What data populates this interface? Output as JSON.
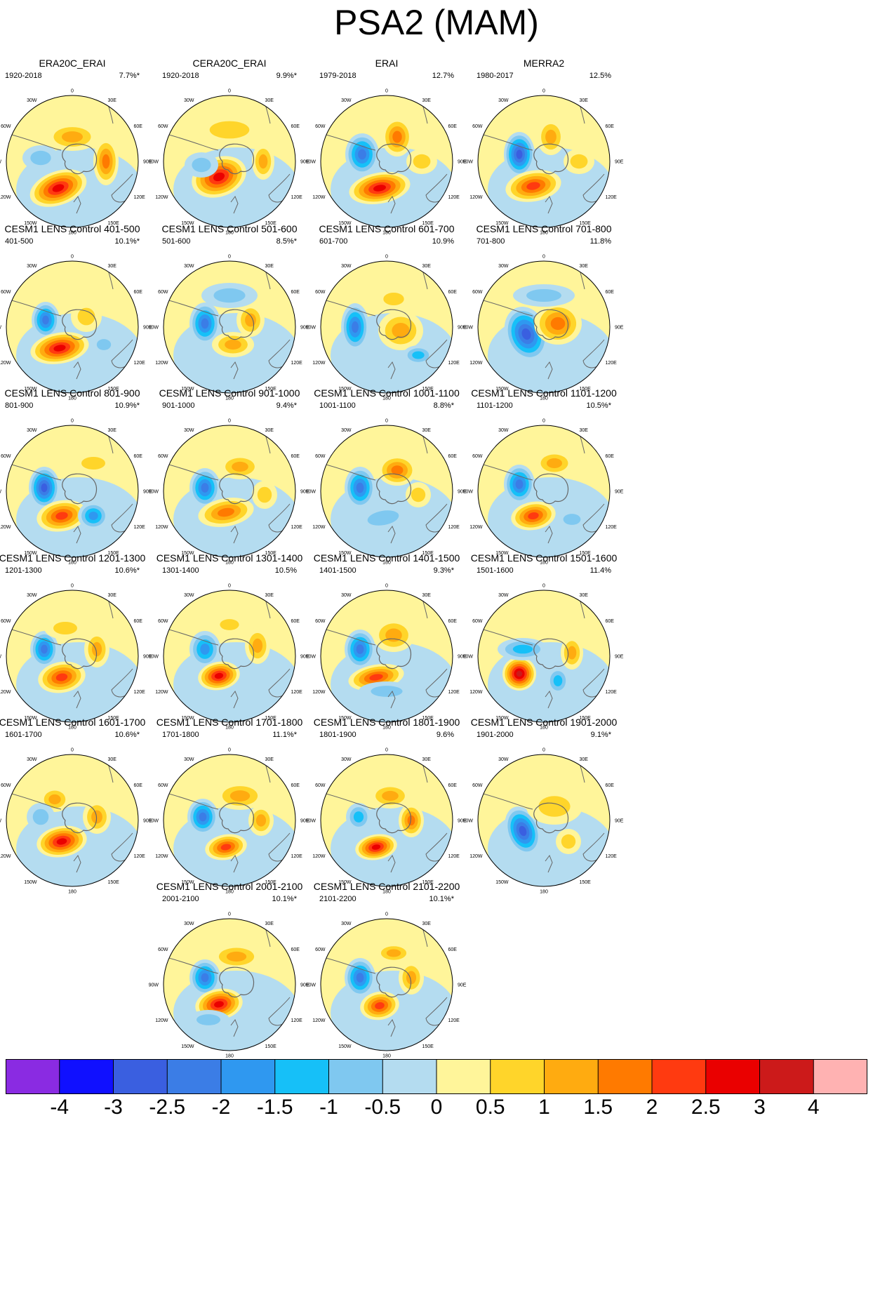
{
  "title": "PSA2 (MAM)",
  "longitude_labels": [
    "0",
    "30E",
    "60E",
    "90E",
    "120E",
    "150E",
    "180",
    "150W",
    "120W",
    "90W",
    "60W",
    "30W"
  ],
  "panels": [
    {
      "title": "ERA20C_ERAI",
      "period": "1920-2018",
      "percent": "7.7%*"
    },
    {
      "title": "CERA20C_ERAI",
      "period": "1920-2018",
      "percent": "9.9%*"
    },
    {
      "title": "ERAI",
      "period": "1979-2018",
      "percent": "12.7%"
    },
    {
      "title": "MERRA2",
      "period": "1980-2017",
      "percent": "12.5%"
    },
    {
      "title": "CESM1 LENS Control 401-500",
      "period": "401-500",
      "percent": "10.1%*"
    },
    {
      "title": "CESM1 LENS Control 501-600",
      "period": "501-600",
      "percent": "8.5%*"
    },
    {
      "title": "CESM1 LENS Control 601-700",
      "period": "601-700",
      "percent": "10.9%"
    },
    {
      "title": "CESM1 LENS Control 701-800",
      "period": "701-800",
      "percent": "11.8%"
    },
    {
      "title": "CESM1 LENS Control 801-900",
      "period": "801-900",
      "percent": "10.9%*"
    },
    {
      "title": "CESM1 LENS Control 901-1000",
      "period": "901-1000",
      "percent": "9.4%*"
    },
    {
      "title": "CESM1 LENS Control 1001-1100",
      "period": "1001-1100",
      "percent": "8.8%*"
    },
    {
      "title": "CESM1 LENS Control 1101-1200",
      "period": "1101-1200",
      "percent": "10.5%*"
    },
    {
      "title": "CESM1 LENS Control 1201-1300",
      "period": "1201-1300",
      "percent": "10.6%*"
    },
    {
      "title": "CESM1 LENS Control 1301-1400",
      "period": "1301-1400",
      "percent": "10.5%"
    },
    {
      "title": "CESM1 LENS Control 1401-1500",
      "period": "1401-1500",
      "percent": "9.3%*"
    },
    {
      "title": "CESM1 LENS Control 1501-1600",
      "period": "1501-1600",
      "percent": "11.4%"
    },
    {
      "title": "CESM1 LENS Control 1601-1700",
      "period": "1601-1700",
      "percent": "10.6%*"
    },
    {
      "title": "CESM1 LENS Control 1701-1800",
      "period": "1701-1800",
      "percent": "11.1%*"
    },
    {
      "title": "CESM1 LENS Control 1801-1900",
      "period": "1801-1900",
      "percent": "9.6%"
    },
    {
      "title": "CESM1 LENS Control 1901-2000",
      "period": "1901-2000",
      "percent": "9.1%*"
    },
    {
      "title": "CESM1 LENS Control 2001-2100",
      "period": "2001-2100",
      "percent": "10.1%*"
    },
    {
      "title": "CESM1 LENS Control 2101-2200",
      "period": "2101-2200",
      "percent": "10.1%*"
    }
  ],
  "colorbar": {
    "labels": [
      "-4",
      "-3",
      "-2.5",
      "-2",
      "-1.5",
      "-1",
      "-0.5",
      "0",
      "0.5",
      "1",
      "1.5",
      "2",
      "2.5",
      "3",
      "4"
    ],
    "colors": [
      "#8a2be2",
      "#1010ff",
      "#3a5fe0",
      "#3b7de6",
      "#2f98f0",
      "#16c0f8",
      "#7fc8f0",
      "#b4dcf0",
      "#fff59a",
      "#ffd52a",
      "#ffab10",
      "#ff7a00",
      "#ff3a10",
      "#ea0000",
      "#cc1a1a",
      "#ffb2b2"
    ]
  }
}
